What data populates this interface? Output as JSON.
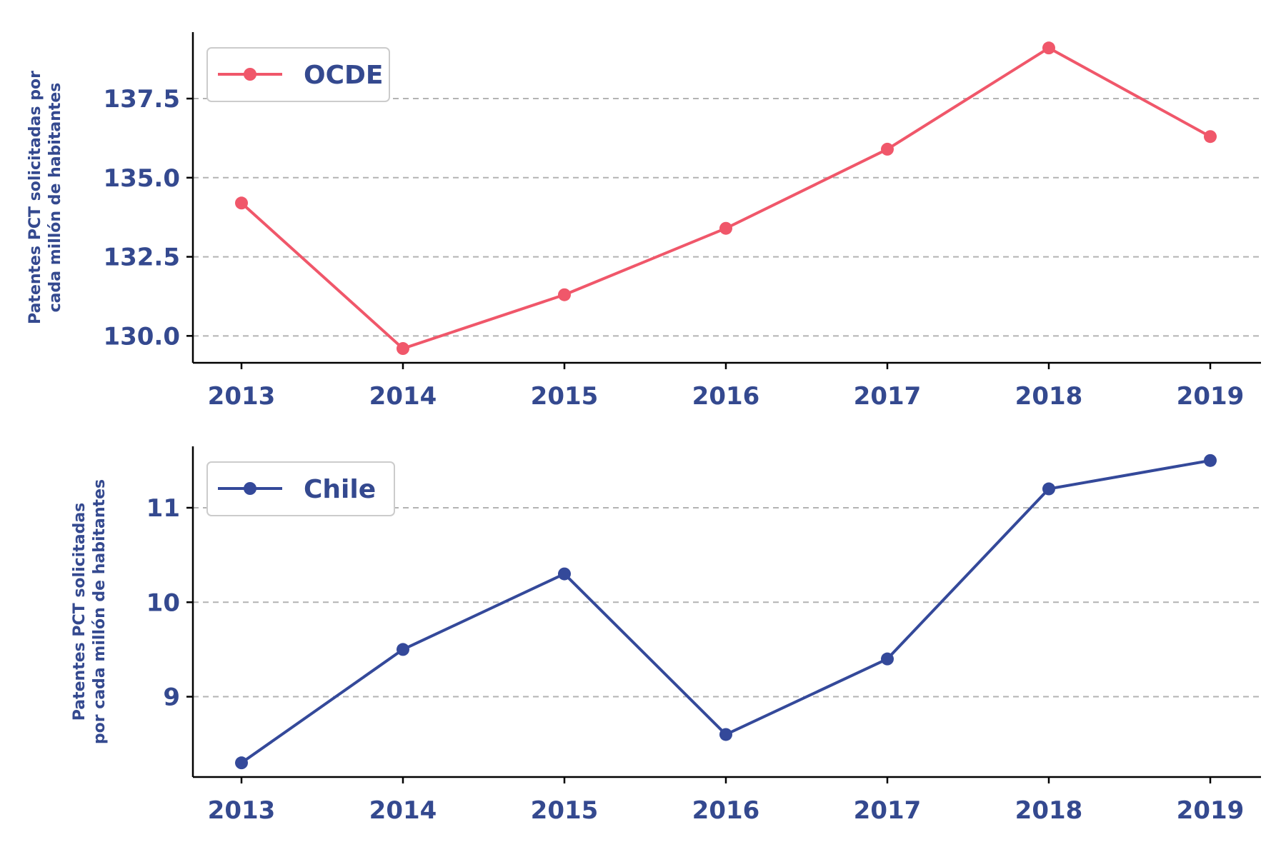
{
  "chart_data": [
    {
      "type": "line",
      "x": [
        2013,
        2014,
        2015,
        2016,
        2017,
        2018,
        2019
      ],
      "series": [
        {
          "name": "OCDE",
          "values": [
            134.2,
            129.6,
            131.3,
            133.4,
            135.9,
            139.1,
            136.3
          ],
          "color": "#f0576a"
        }
      ],
      "ylabel": [
        "Patentes PCT solicitadas por",
        "cada millón de habitantes"
      ],
      "yticks": [
        130.0,
        132.5,
        135.0,
        137.5
      ],
      "ytick_labels": [
        "130.0",
        "132.5",
        "135.0",
        "137.5"
      ],
      "xtick_labels": [
        "2013",
        "2014",
        "2015",
        "2016",
        "2017",
        "2018",
        "2019"
      ],
      "ylim": [
        129.15,
        139.6
      ],
      "grid": "horizontal dashed",
      "legend_position": "top-left"
    },
    {
      "type": "line",
      "x": [
        2013,
        2014,
        2015,
        2016,
        2017,
        2018,
        2019
      ],
      "series": [
        {
          "name": "Chile",
          "values": [
            8.3,
            9.5,
            10.3,
            8.6,
            9.4,
            11.2,
            11.5
          ],
          "color": "#34499a"
        }
      ],
      "ylabel": [
        "Patentes PCT solicitadas",
        "por cada millón de habitantes"
      ],
      "yticks": [
        9,
        10,
        11
      ],
      "ytick_labels": [
        "9",
        "10",
        "11"
      ],
      "xtick_labels": [
        "2013",
        "2014",
        "2015",
        "2016",
        "2017",
        "2018",
        "2019"
      ],
      "ylim": [
        8.15,
        11.65
      ],
      "grid": "horizontal dashed",
      "legend_position": "top-left"
    }
  ],
  "colors": {
    "text": "#34498f",
    "grid": "#b3b3b3",
    "axis": "#000000"
  }
}
